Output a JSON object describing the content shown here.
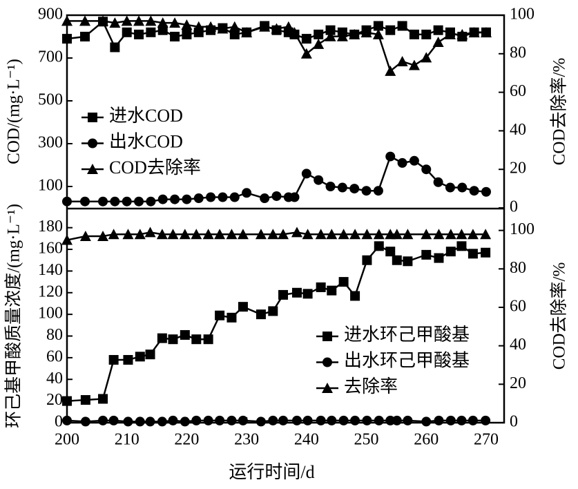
{
  "chart_data": [
    {
      "type": "line",
      "ylabel": "COD/(mg·L⁻¹)",
      "y2label": "COD去除率/%",
      "x": [
        200,
        203,
        206,
        208,
        210,
        212,
        214,
        216,
        218,
        220,
        222,
        224,
        226,
        228,
        230,
        233,
        235,
        237,
        238,
        240,
        242,
        244,
        246,
        248,
        250,
        252,
        254,
        256,
        258,
        260,
        262,
        264,
        266,
        268,
        270
      ],
      "xlim": [
        200,
        273
      ],
      "ylim": [
        0,
        900
      ],
      "yticks": [
        100,
        300,
        500,
        700,
        900
      ],
      "y2lim": [
        0,
        100
      ],
      "y2ticks": [
        0,
        20,
        40,
        60,
        80,
        100
      ],
      "legend": "center left",
      "series": [
        {
          "name": "进水COD",
          "color": "#000000",
          "marker": "square",
          "values": [
            790,
            800,
            870,
            750,
            820,
            810,
            820,
            830,
            800,
            810,
            820,
            830,
            840,
            810,
            820,
            850,
            830,
            820,
            810,
            790,
            810,
            830,
            820,
            810,
            830,
            850,
            830,
            850,
            810,
            810,
            830,
            820,
            800,
            820,
            820
          ]
        },
        {
          "name": "出水COD",
          "color": "#000000",
          "marker": "circle",
          "values": [
            30,
            30,
            30,
            30,
            30,
            30,
            30,
            40,
            40,
            40,
            45,
            50,
            50,
            50,
            70,
            45,
            55,
            50,
            50,
            160,
            130,
            100,
            95,
            90,
            80,
            80,
            240,
            210,
            220,
            180,
            120,
            95,
            95,
            80,
            75
          ]
        },
        {
          "name": "COD去除率",
          "color": "#000000",
          "marker": "triangle",
          "axis": "y2",
          "values": [
            97,
            97,
            97,
            96,
            97,
            97,
            97,
            96,
            96,
            95,
            94,
            94,
            93,
            94,
            91,
            94,
            93,
            94,
            91,
            80,
            85,
            89,
            89,
            90,
            91,
            90,
            71,
            76,
            74,
            78,
            86,
            90,
            90,
            91,
            91
          ]
        }
      ]
    },
    {
      "type": "line",
      "xlabel": "运行时间/d",
      "ylabel": "环己基甲酸质量浓度/(mg·L⁻¹)",
      "y2label": "COD去除率/%",
      "x": [
        200,
        203.1,
        206,
        207.8,
        210.2,
        212.2,
        213.9,
        215.9,
        217.7,
        219.7,
        221.6,
        223.6,
        225.5,
        227.5,
        229.4,
        232.4,
        234.4,
        236.1,
        238.4,
        240.2,
        242.4,
        244.2,
        246.2,
        248.1,
        250.1,
        252.1,
        254,
        255.1,
        256.9,
        260,
        262.1,
        264.1,
        265.9,
        267.8,
        269.9
      ],
      "xlim": [
        200,
        273
      ],
      "xticks": [
        200,
        210,
        220,
        230,
        240,
        250,
        260,
        270
      ],
      "ylim": [
        0,
        197
      ],
      "yticks": [
        0,
        20,
        40,
        60,
        80,
        100,
        120,
        140,
        160,
        180
      ],
      "y2lim": [
        0,
        111
      ],
      "y2ticks": [
        0,
        20,
        40,
        60,
        80,
        100
      ],
      "legend": "lower right",
      "series": [
        {
          "name": "进水环己甲酸基",
          "color": "#000000",
          "marker": "square",
          "values": [
            20,
            21,
            22,
            58,
            58,
            61,
            63,
            78,
            77,
            81,
            77,
            77,
            99,
            97,
            107,
            100,
            103,
            118,
            120,
            119,
            125,
            122,
            130,
            117,
            150,
            163,
            158,
            150,
            149,
            155,
            152,
            158,
            163,
            156,
            157
          ]
        },
        {
          "name": "出水环己甲酸基",
          "color": "#000000",
          "marker": "circle",
          "values": [
            2,
            1,
            2,
            2,
            1,
            1,
            1,
            1,
            2,
            1,
            2,
            2,
            2,
            2,
            2,
            1,
            2,
            2,
            2,
            2,
            2,
            2,
            2,
            2,
            2,
            2,
            2,
            2,
            2,
            1,
            2,
            2,
            2,
            2,
            2
          ]
        },
        {
          "name": "去除率",
          "color": "#000000",
          "marker": "triangle",
          "axis": "y2",
          "values": [
            95,
            97,
            97,
            98,
            98,
            98,
            99,
            98,
            98,
            98,
            98,
            98,
            98,
            98,
            98,
            98,
            98,
            98,
            99,
            98,
            98,
            98,
            98,
            98,
            98,
            98,
            98,
            98,
            98,
            98,
            98,
            98,
            98,
            98,
            98
          ]
        }
      ]
    }
  ]
}
